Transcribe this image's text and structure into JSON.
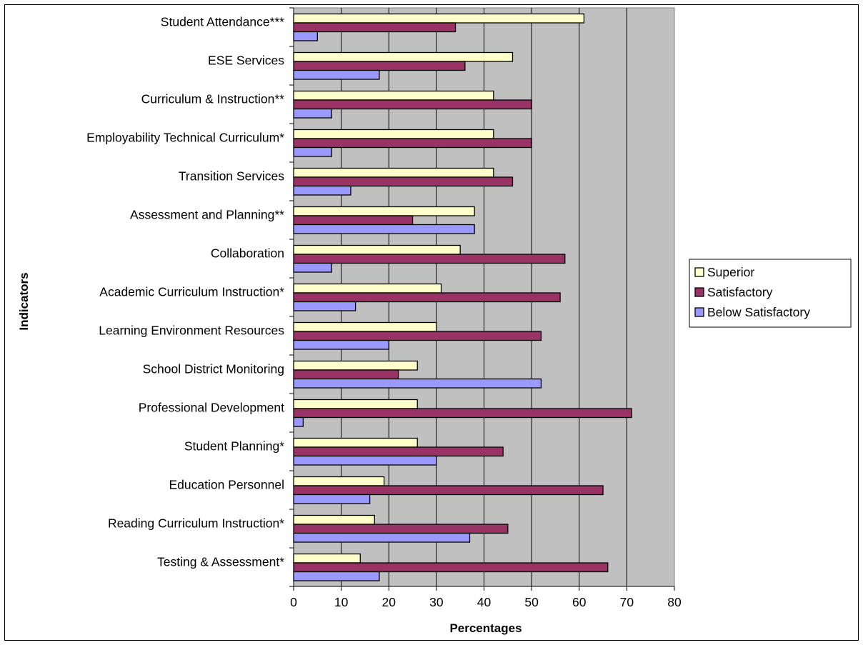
{
  "chart_data": {
    "type": "bar",
    "orientation": "horizontal",
    "title": "",
    "xlabel": "Percentages",
    "ylabel": "Indicators",
    "xlim": [
      0,
      80
    ],
    "x_ticks": [
      0,
      10,
      20,
      30,
      40,
      50,
      60,
      70,
      80
    ],
    "grid": "vertical major gridlines",
    "plot_background": "#C0C0C0",
    "legend_position": "right",
    "categories": [
      "Student Attendance***",
      "ESE Services",
      "Curriculum & Instruction**",
      "Employability Technical Curriculum*",
      "Transition Services",
      "Assessment and Planning**",
      "Collaboration",
      "Academic Curriculum Instruction*",
      "Learning Environment Resources",
      "School District Monitoring",
      "Professional Development",
      "Student Planning*",
      "Education Personnel",
      "Reading Curriculum Instruction*",
      "Testing & Assessment*"
    ],
    "series": [
      {
        "name": "Superior",
        "color": "#FFFFCC",
        "values": [
          61,
          46,
          42,
          42,
          42,
          38,
          35,
          31,
          30,
          26,
          26,
          26,
          19,
          17,
          14
        ]
      },
      {
        "name": "Satisfactory",
        "color": "#993366",
        "values": [
          34,
          36,
          50,
          50,
          46,
          25,
          57,
          56,
          52,
          22,
          71,
          44,
          65,
          45,
          66
        ]
      },
      {
        "name": "Below Satisfactory",
        "color": "#9999FF",
        "values": [
          5,
          18,
          8,
          8,
          12,
          38,
          8,
          13,
          20,
          52,
          2,
          30,
          16,
          37,
          18
        ]
      }
    ]
  }
}
